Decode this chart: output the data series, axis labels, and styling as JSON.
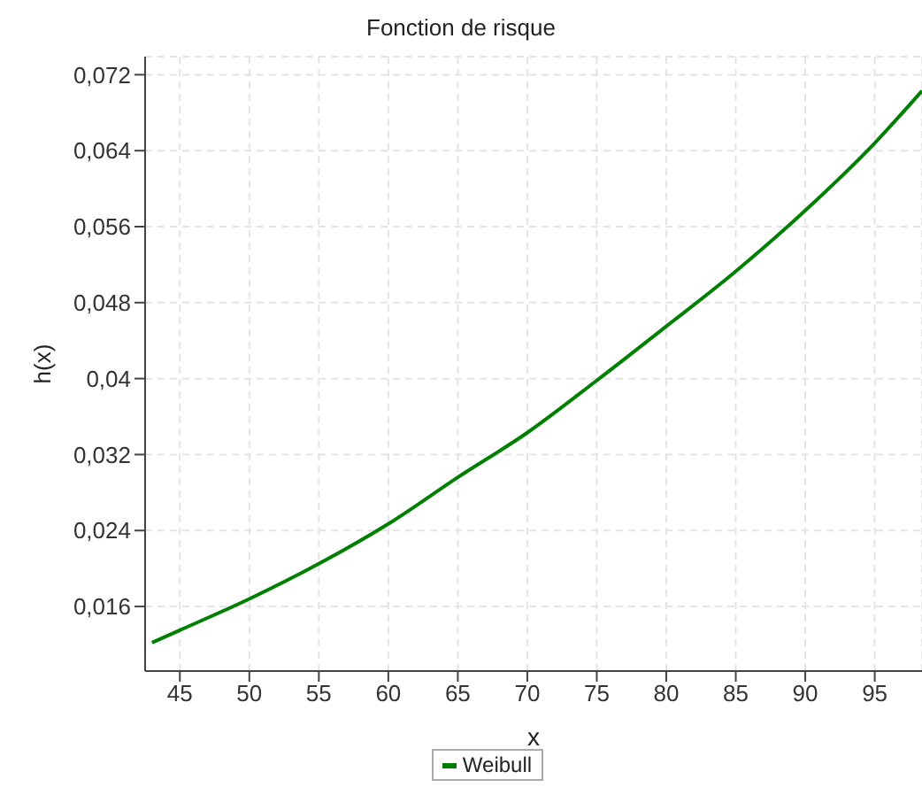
{
  "chart_data": {
    "type": "line",
    "title": "Fonction de risque",
    "xlabel": "x",
    "ylabel": "h(x)",
    "x": [
      43,
      45,
      50,
      55,
      60,
      65,
      70,
      75,
      80,
      85,
      90,
      95,
      98.4
    ],
    "series": [
      {
        "name": "Weibull",
        "color": "#008000",
        "values": [
          0.0122,
          0.0135,
          0.0168,
          0.0205,
          0.0247,
          0.0296,
          0.0343,
          0.0398,
          0.0455,
          0.0513,
          0.0577,
          0.0648,
          0.0703
        ]
      }
    ],
    "xlim": [
      42.5,
      98.4
    ],
    "xticks": [
      45,
      50,
      55,
      60,
      65,
      70,
      75,
      80,
      85,
      90,
      95
    ],
    "ylim": [
      0.0092,
      0.0739
    ],
    "yticks": [
      {
        "value": 0.016,
        "label": "0,016"
      },
      {
        "value": 0.024,
        "label": "0,024"
      },
      {
        "value": 0.032,
        "label": "0,032"
      },
      {
        "value": 0.04,
        "label": "0,04"
      },
      {
        "value": 0.048,
        "label": "0,048"
      },
      {
        "value": 0.056,
        "label": "0,056"
      },
      {
        "value": 0.064,
        "label": "0,064"
      },
      {
        "value": 0.072,
        "label": "0,072"
      }
    ],
    "grid": true,
    "legend": "bottom",
    "marker": "none",
    "line_style": "solid"
  }
}
